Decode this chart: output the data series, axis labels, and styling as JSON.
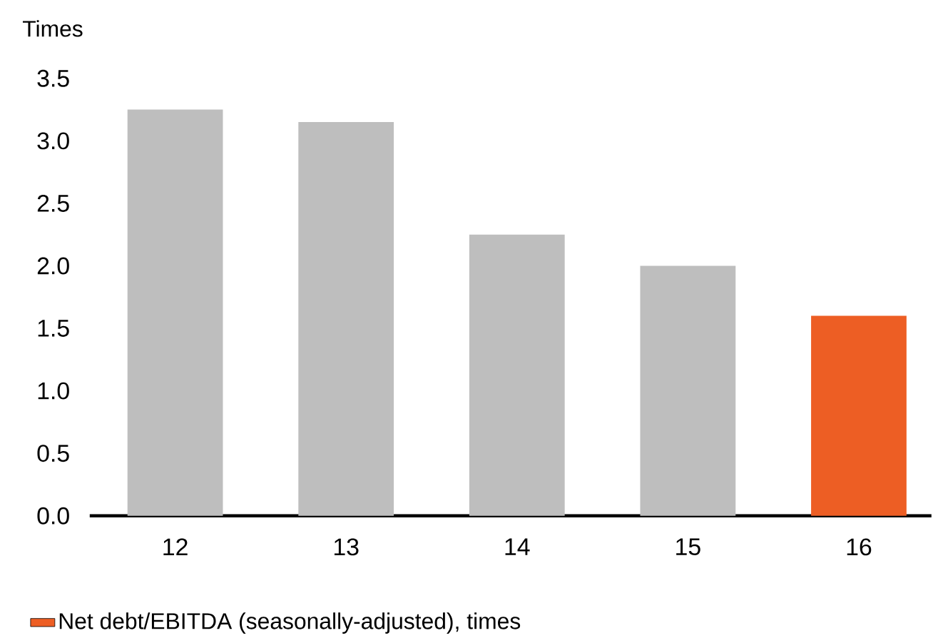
{
  "chart_data": {
    "type": "bar",
    "ylabel": "Times",
    "categories": [
      "12",
      "13",
      "14",
      "15",
      "16"
    ],
    "series": [
      {
        "name": "Net debt/EBITDA (seasonally-adjusted), times",
        "color": "#ed5e24",
        "colors": [
          "#bebebe",
          "#bebebe",
          "#bebebe",
          "#bebebe",
          "#ed5e24"
        ],
        "values": [
          3.25,
          3.15,
          2.25,
          2.0,
          1.6
        ]
      }
    ],
    "ylim": [
      0,
      3.5
    ],
    "yticks": [
      {
        "value": 0,
        "label": "0.0"
      },
      0.5,
      {
        "value": 1,
        "label": "1.0"
      },
      1.5,
      {
        "value": 2,
        "label": "2.0"
      },
      2.5,
      {
        "value": 3,
        "label": "3.0"
      },
      3.5
    ],
    "grid": false,
    "legend": "bottom left"
  }
}
